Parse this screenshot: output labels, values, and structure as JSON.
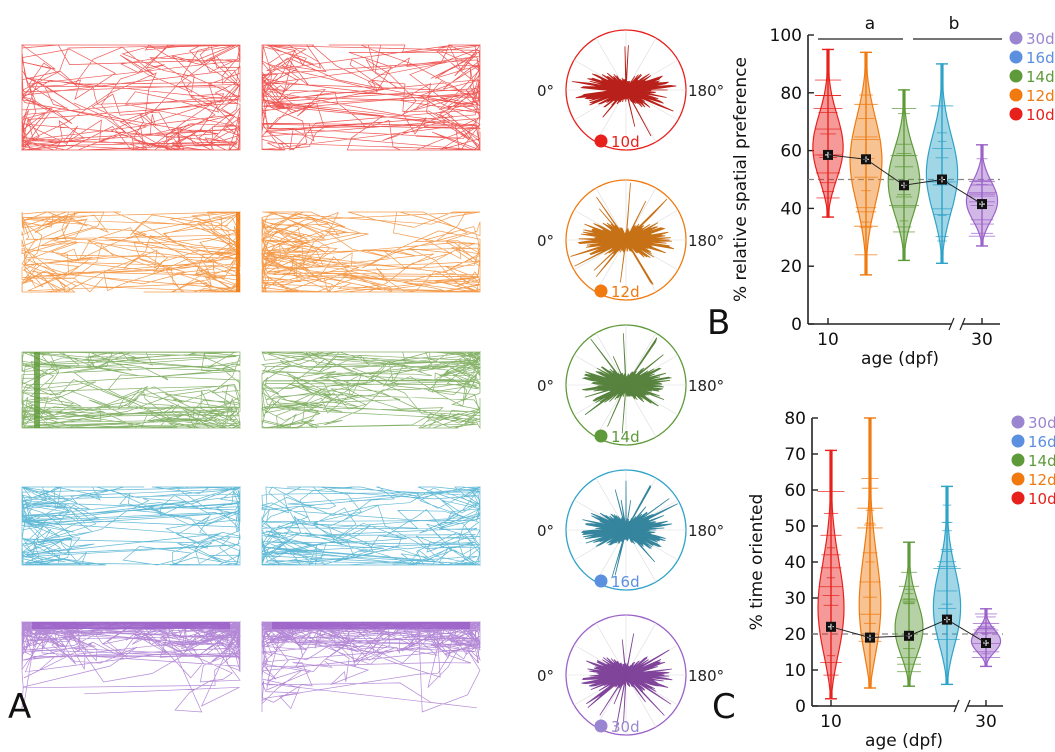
{
  "colors": {
    "10d": "#e8201c",
    "12d": "#f07a10",
    "14d": "#5f9a3a",
    "16d": "#2fa3c8",
    "30d": "#9b62c8",
    "legend16": "#5b8fe0",
    "legend30": "#9a86d0",
    "polar10": "#b5160f",
    "polar12": "#c56a0b",
    "polar14": "#4f7d35",
    "polar16": "#2a7f98",
    "polar30": "#7a3a95"
  },
  "panel_letters": {
    "a": "A",
    "b": "B",
    "c": "C"
  },
  "panel_a": {
    "rows": [
      {
        "age": "10d",
        "label": "10d",
        "angle_left": "0°",
        "angle_right": "180°"
      },
      {
        "age": "12d",
        "label": "12d",
        "angle_left": "0°",
        "angle_right": "180°"
      },
      {
        "age": "14d",
        "label": "14d",
        "angle_left": "0°",
        "angle_right": "180°"
      },
      {
        "age": "16d",
        "label": "16d",
        "angle_left": "0°",
        "angle_right": "180°"
      },
      {
        "age": "30d",
        "label": "30d",
        "angle_left": "0°",
        "angle_right": "180°"
      }
    ]
  },
  "chart_data": [
    {
      "type": "violin",
      "panel": "B",
      "ylabel": "% relative spatial preference",
      "xlabel": "age (dpf)",
      "ylim": [
        0,
        100
      ],
      "yticks": [
        "0",
        "20",
        "40",
        "60",
        "80",
        "100"
      ],
      "xticks": [
        "10",
        "30"
      ],
      "reference_line": 50,
      "significance": [
        {
          "label": "a"
        },
        {
          "label": "b"
        }
      ],
      "legend": [
        "30d",
        "16d",
        "14d",
        "12d",
        "10d"
      ],
      "series": [
        {
          "name": "10d",
          "min": 37,
          "max": 95,
          "mean": 58.5
        },
        {
          "name": "12d",
          "min": 17,
          "max": 94,
          "mean": 57
        },
        {
          "name": "14d",
          "min": 22,
          "max": 81,
          "mean": 48
        },
        {
          "name": "16d",
          "min": 21,
          "max": 90,
          "mean": 50
        },
        {
          "name": "30d",
          "min": 27,
          "max": 62,
          "mean": 41.5
        }
      ]
    },
    {
      "type": "violin",
      "panel": "C",
      "ylabel": "% time oriented",
      "xlabel": "age (dpf)",
      "ylim": [
        0,
        80
      ],
      "yticks": [
        "0",
        "10",
        "20",
        "30",
        "40",
        "50",
        "60",
        "70",
        "80"
      ],
      "xticks": [
        "10",
        "30"
      ],
      "reference_line": 20,
      "legend": [
        "30d",
        "16d",
        "14d",
        "12d",
        "10d"
      ],
      "series": [
        {
          "name": "10d",
          "min": 2,
          "max": 71,
          "mean": 22
        },
        {
          "name": "12d",
          "min": 5,
          "max": 80,
          "mean": 19
        },
        {
          "name": "14d",
          "min": 5.5,
          "max": 45.5,
          "mean": 19.5
        },
        {
          "name": "16d",
          "min": 6,
          "max": 61,
          "mean": 24
        },
        {
          "name": "30d",
          "min": 11,
          "max": 27,
          "mean": 17.5
        }
      ]
    }
  ]
}
